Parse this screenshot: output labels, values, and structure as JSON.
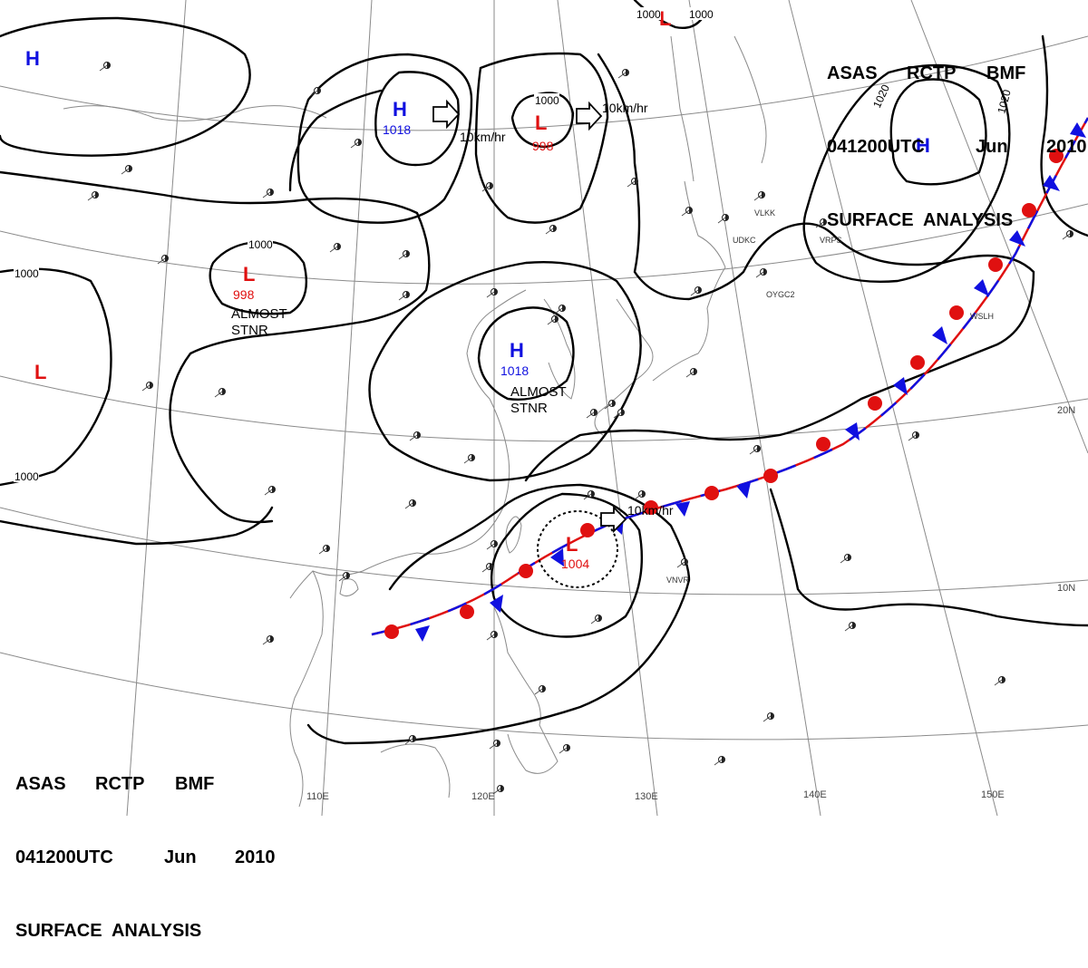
{
  "header": {
    "line1": [
      "ASAS",
      "RCTP",
      "BMF"
    ],
    "line2": [
      "041200UTC",
      "Jun",
      "2010"
    ],
    "line3": "SURFACE  ANALYSIS"
  },
  "longitude_labels": [
    "110E",
    "120E",
    "130E",
    "140E",
    "150E"
  ],
  "latitude_labels": [
    "20N",
    "10N"
  ],
  "pressure_centers": [
    {
      "type": "H",
      "value": ""
    },
    {
      "type": "H",
      "value": "1018"
    },
    {
      "type": "L",
      "value": "998"
    },
    {
      "type": "H",
      "value": ""
    },
    {
      "type": "L",
      "value": ""
    },
    {
      "type": "L",
      "value": "998"
    },
    {
      "type": "L",
      "value": ""
    },
    {
      "type": "H",
      "value": "1018"
    },
    {
      "type": "L",
      "value": "1004"
    }
  ],
  "isobar_labels": [
    "1000",
    "1000",
    "1000",
    "1020",
    "1020",
    "1000",
    "1000",
    "1000"
  ],
  "motion_labels": [
    "10km/hr",
    "10km/hr",
    "10km/hr"
  ],
  "notes": [
    "ALMOST\nSTNR",
    "ALMOST\nSTNR"
  ],
  "station_ids": [
    "UDKC",
    "VLKK",
    "VRPS",
    "OYGC2",
    "VNVR",
    "WSLH"
  ],
  "colors": {
    "high": "#1010e0",
    "low": "#e01010",
    "isobar": "#000000",
    "warm_front": "#e01010",
    "cold_front": "#1010e0",
    "grid": "#777777",
    "coast": "#888888"
  }
}
